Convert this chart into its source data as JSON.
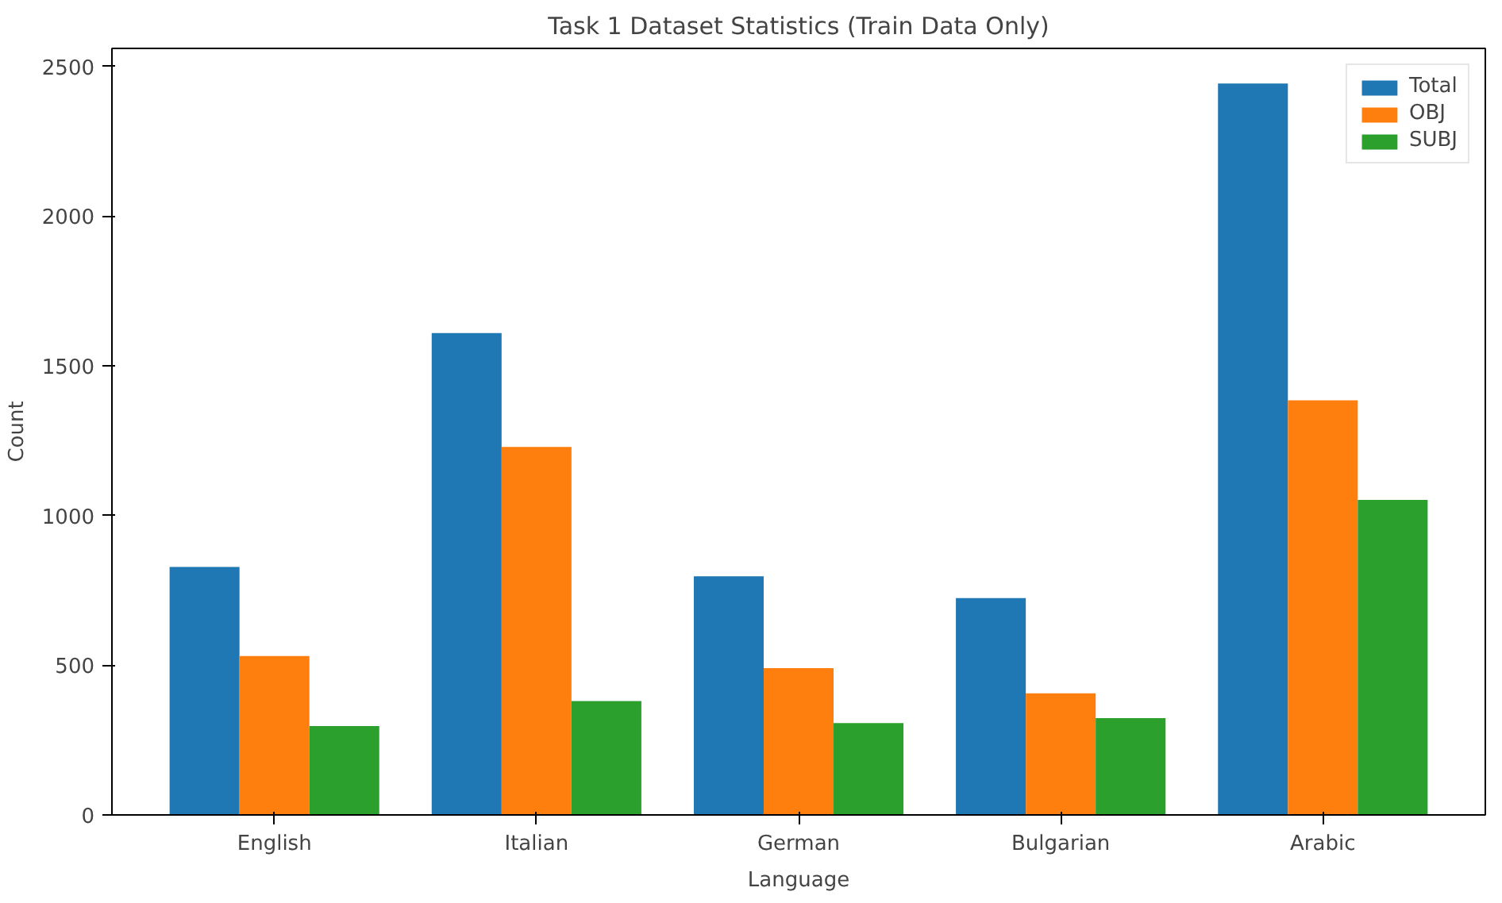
{
  "chart_data": {
    "type": "bar",
    "title": "Task 1 Dataset Statistics (Train Data Only)",
    "xlabel": "Language",
    "ylabel": "Count",
    "categories": [
      "English",
      "Italian",
      "German",
      "Bulgarian",
      "Arabic"
    ],
    "series": [
      {
        "name": "Total",
        "color": "#1f77b4",
        "values": [
          828,
          1609,
          797,
          724,
          2443
        ]
      },
      {
        "name": "OBJ",
        "color": "#ff7f0e",
        "values": [
          531,
          1229,
          490,
          406,
          1385
        ]
      },
      {
        "name": "SUBJ",
        "color": "#2ca02c",
        "values": [
          297,
          380,
          307,
          323,
          1052
        ]
      }
    ],
    "ylim": [
      0,
      2560
    ],
    "yticks": [
      0,
      500,
      1000,
      1500,
      2000,
      2500
    ],
    "grid": false,
    "legend": "top right"
  }
}
